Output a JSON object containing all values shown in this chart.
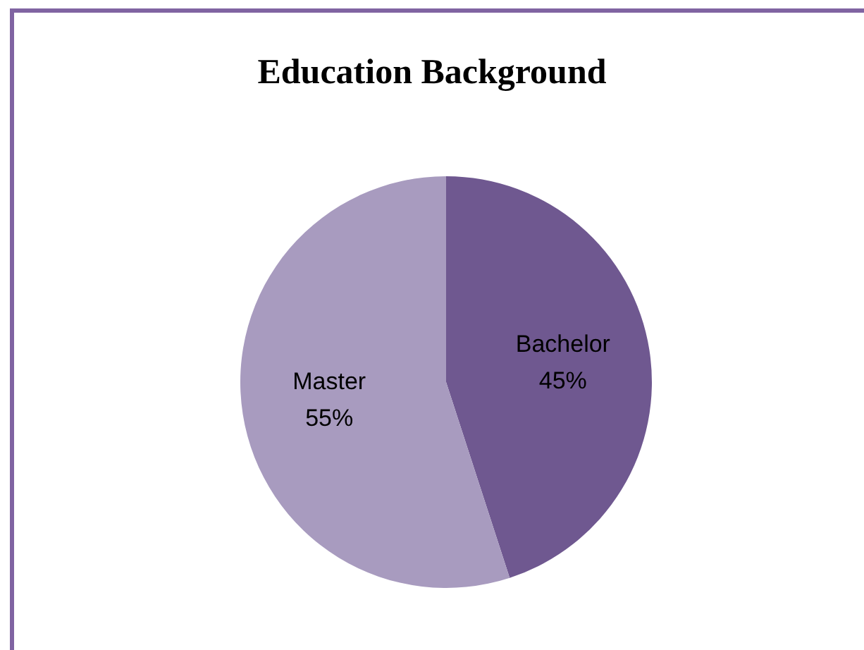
{
  "chart_data": {
    "type": "pie",
    "title": "Education Background",
    "categories": [
      "Bachelor",
      "Master"
    ],
    "values": [
      45,
      55
    ],
    "colors": [
      "#6f5890",
      "#a89bbf"
    ],
    "value_labels": [
      "45%",
      "55%"
    ],
    "legend": false
  }
}
